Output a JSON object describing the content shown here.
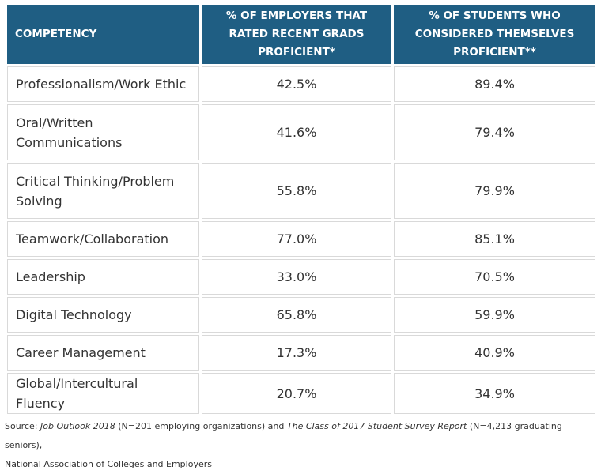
{
  "chart_data": {
    "type": "table",
    "headers": [
      "COMPETENCY",
      "% OF EMPLOYERS THAT RATED RECENT GRADS PROFICIENT*",
      "% OF STUDENTS WHO CONSIDERED THEMSELVES PROFICIENT**"
    ],
    "rows": [
      [
        "Professionalism/Work Ethic",
        "42.5%",
        "89.4%"
      ],
      [
        "Oral/Written Communications",
        "41.6%",
        "79.4%"
      ],
      [
        "Critical Thinking/Problem Solving",
        "55.8%",
        "79.9%"
      ],
      [
        "Teamwork/Collaboration",
        "77.0%",
        "85.1%"
      ],
      [
        "Leadership",
        "33.0%",
        "70.5%"
      ],
      [
        "Digital Technology",
        "65.8%",
        "59.9%"
      ],
      [
        "Career Management",
        "17.3%",
        "40.9%"
      ],
      [
        "Global/Intercultural Fluency",
        "20.7%",
        "34.9%"
      ]
    ],
    "header_color": "#1f5e83"
  },
  "source": {
    "prefix": "Source: ",
    "title1": "Job Outlook 2018",
    "mid1": " (N=201 employing organizations) and ",
    "title2": "The Class of 2017 Student Survey Report",
    "mid2": " (N=4,213 graduating seniors),",
    "org": "National Association of Colleges and Employers"
  }
}
